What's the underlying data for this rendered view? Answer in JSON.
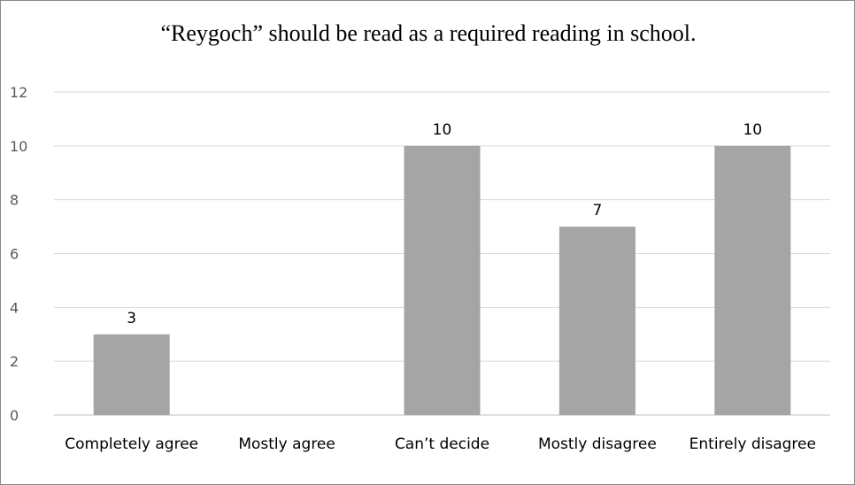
{
  "chart_data": {
    "type": "bar",
    "title": "“Reygoch” should be read as a required reading in school.",
    "categories": [
      "Completely agree",
      "Mostly agree",
      "Can’t decide",
      "Mostly disagree",
      "Entirely disagree"
    ],
    "values": [
      3,
      0,
      10,
      7,
      10
    ],
    "data_labels": [
      "3",
      "",
      "10",
      "7",
      "10"
    ],
    "ylim": [
      0,
      12
    ],
    "yticks": [
      0,
      2,
      4,
      6,
      8,
      10,
      12
    ],
    "grid": true,
    "legend": "none",
    "bar_color": "#a5a5a5",
    "grid_color": "#d9d9d9",
    "axis_color": "#bfbfbf"
  }
}
